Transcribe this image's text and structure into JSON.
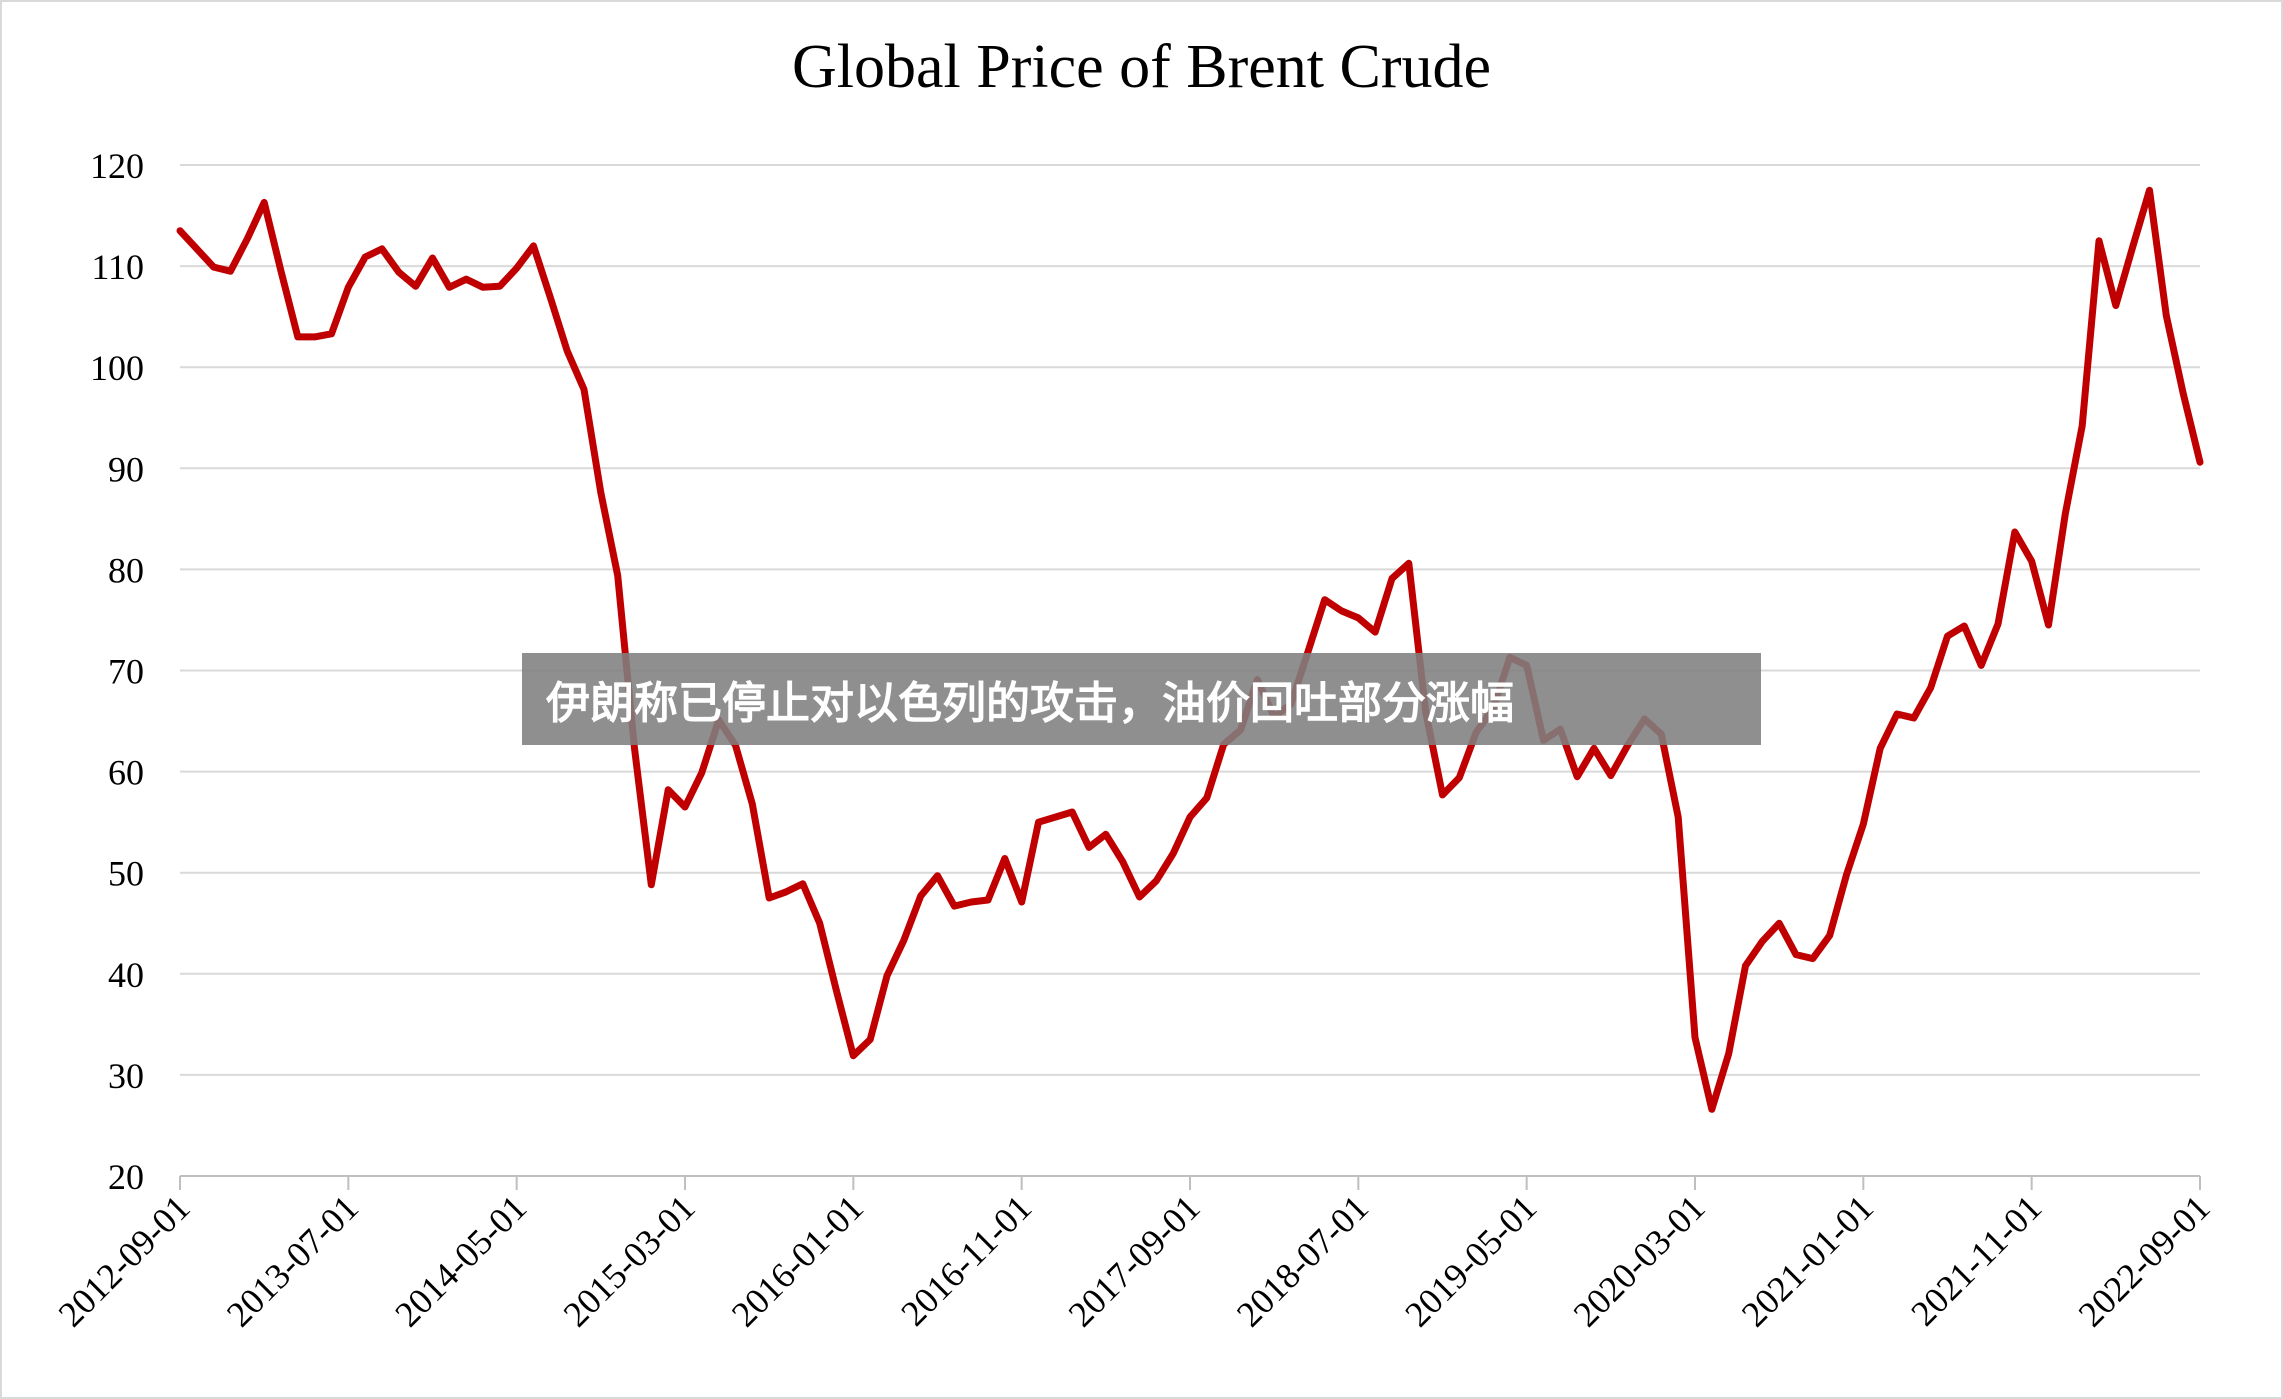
{
  "chart_data": {
    "type": "line",
    "title": "Global Price of Brent Crude",
    "xlabel": "",
    "ylabel": "",
    "ylim": [
      20,
      120
    ],
    "yticks": [
      20,
      30,
      40,
      50,
      60,
      70,
      80,
      90,
      100,
      110,
      120
    ],
    "xticks": [
      "2012-09-01",
      "2013-07-01",
      "2014-05-01",
      "2015-03-01",
      "2016-01-01",
      "2016-11-01",
      "2017-09-01",
      "2018-07-01",
      "2019-05-01",
      "2020-03-01",
      "2021-01-01",
      "2021-11-01",
      "2022-09-01"
    ],
    "grid": "horizontal",
    "color": "#c00000",
    "series": [
      {
        "x": [
          "2012-09-01",
          "2012-10-01",
          "2012-11-01",
          "2012-12-01",
          "2013-01-01",
          "2013-02-01",
          "2013-03-01",
          "2013-04-01",
          "2013-05-01",
          "2013-06-01",
          "2013-07-01",
          "2013-08-01",
          "2013-09-01",
          "2013-10-01",
          "2013-11-01",
          "2013-12-01",
          "2014-01-01",
          "2014-02-01",
          "2014-03-01",
          "2014-04-01",
          "2014-05-01",
          "2014-06-01",
          "2014-07-01",
          "2014-08-01",
          "2014-09-01",
          "2014-10-01",
          "2014-11-01",
          "2014-12-01",
          "2015-01-01",
          "2015-02-01",
          "2015-03-01",
          "2015-04-01",
          "2015-05-01",
          "2015-06-01",
          "2015-07-01",
          "2015-08-01",
          "2015-09-01",
          "2015-10-01",
          "2015-11-01",
          "2015-12-01",
          "2016-01-01",
          "2016-02-01",
          "2016-03-01",
          "2016-04-01",
          "2016-05-01",
          "2016-06-01",
          "2016-07-01",
          "2016-08-01",
          "2016-09-01",
          "2016-10-01",
          "2016-11-01",
          "2016-12-01",
          "2017-01-01",
          "2017-02-01",
          "2017-03-01",
          "2017-04-01",
          "2017-05-01",
          "2017-06-01",
          "2017-07-01",
          "2017-08-01",
          "2017-09-01",
          "2017-10-01",
          "2017-11-01",
          "2017-12-01",
          "2018-01-01",
          "2018-02-01",
          "2018-03-01",
          "2018-04-01",
          "2018-05-01",
          "2018-06-01",
          "2018-07-01",
          "2018-08-01",
          "2018-09-01",
          "2018-10-01",
          "2018-11-01",
          "2018-12-01",
          "2019-01-01",
          "2019-02-01",
          "2019-03-01",
          "2019-04-01",
          "2019-05-01",
          "2019-06-01",
          "2019-07-01",
          "2019-08-01",
          "2019-09-01",
          "2019-10-01",
          "2019-11-01",
          "2019-12-01",
          "2020-01-01",
          "2020-02-01",
          "2020-03-01",
          "2020-04-01",
          "2020-05-01",
          "2020-06-01",
          "2020-07-01",
          "2020-08-01",
          "2020-09-01",
          "2020-10-01",
          "2020-11-01",
          "2020-12-01",
          "2021-01-01",
          "2021-02-01",
          "2021-03-01",
          "2021-04-01",
          "2021-05-01",
          "2021-06-01",
          "2021-07-01",
          "2021-08-01",
          "2021-09-01",
          "2021-10-01",
          "2021-11-01",
          "2021-12-01",
          "2022-01-01",
          "2022-02-01",
          "2022-03-01",
          "2022-04-01",
          "2022-05-01",
          "2022-06-01",
          "2022-07-01",
          "2022-08-01",
          "2022-09-01"
        ],
        "values": [
          113.5,
          111.7,
          109.9,
          109.5,
          112.7,
          116.3,
          109.5,
          103.0,
          103.0,
          103.3,
          107.9,
          110.9,
          111.7,
          109.4,
          108.0,
          110.8,
          107.9,
          108.7,
          107.9,
          108.0,
          109.8,
          112.0,
          106.9,
          101.6,
          97.8,
          87.6,
          79.4,
          62.3,
          48.8,
          58.2,
          56.5,
          59.9,
          65.1,
          62.6,
          56.8,
          47.5,
          48.1,
          48.9,
          45.0,
          38.3,
          31.9,
          33.5,
          39.8,
          43.3,
          47.7,
          49.7,
          46.7,
          47.1,
          47.3,
          51.4,
          47.1,
          55.0,
          55.5,
          56.0,
          52.5,
          53.8,
          51.1,
          47.6,
          49.2,
          51.9,
          55.5,
          57.4,
          62.7,
          64.1,
          69.1,
          65.4,
          66.7,
          71.8,
          77.0,
          75.9,
          75.2,
          73.8,
          79.1,
          80.6,
          65.9,
          57.7,
          59.4,
          63.9,
          66.2,
          71.3,
          70.5,
          63.1,
          64.2,
          59.5,
          62.3,
          59.6,
          62.6,
          65.2,
          63.7,
          55.5,
          33.7,
          26.6,
          32.1,
          40.8,
          43.2,
          45.0,
          41.9,
          41.5,
          43.8,
          49.8,
          54.8,
          62.3,
          65.7,
          65.3,
          68.3,
          73.4,
          74.4,
          70.5,
          74.6,
          83.7,
          80.8,
          74.5,
          85.5,
          94.2,
          112.5,
          106.1,
          111.9,
          117.5,
          105.1,
          97.4,
          90.6
        ]
      }
    ],
    "banner_text": "伊朗称已停止对以色列的攻击，油价回吐部分涨幅"
  }
}
